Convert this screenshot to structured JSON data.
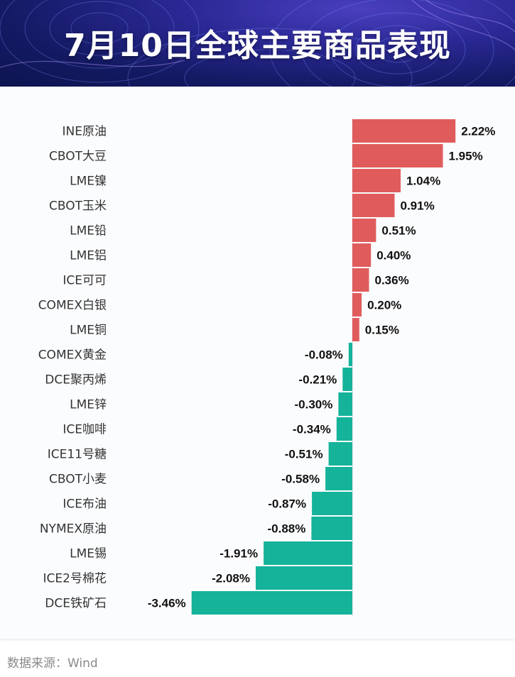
{
  "header": {
    "title": "7月10日全球主要商品表现"
  },
  "source": {
    "label": "数据来源：Wind"
  },
  "colors": {
    "positive": "#e05c5c",
    "negative": "#14b39a",
    "header_bg": "#1a1f73"
  },
  "chart_data": {
    "type": "bar",
    "orientation": "horizontal",
    "title": "7月10日全球主要商品表现",
    "unit": "%",
    "categories": [
      "INE原油",
      "CBOT大豆",
      "LME镍",
      "CBOT玉米",
      "LME铅",
      "LME铝",
      "ICE可可",
      "COMEX白银",
      "LME铜",
      "COMEX黄金",
      "DCE聚丙烯",
      "LME锌",
      "ICE咖啡",
      "ICE11号糖",
      "CBOT小麦",
      "ICE布油",
      "NYMEX原油",
      "LME锡",
      "ICE2号棉花",
      "DCE铁矿石"
    ],
    "values": [
      2.22,
      1.95,
      1.04,
      0.91,
      0.51,
      0.4,
      0.36,
      0.2,
      0.15,
      -0.08,
      -0.21,
      -0.3,
      -0.34,
      -0.51,
      -0.58,
      -0.87,
      -0.88,
      -1.91,
      -2.08,
      -3.46
    ],
    "labels": [
      "2.22%",
      "1.95%",
      "1.04%",
      "0.91%",
      "0.51%",
      "0.40%",
      "0.36%",
      "0.20%",
      "0.15%",
      "-0.08%",
      "-0.21%",
      "-0.30%",
      "-0.34%",
      "-0.51%",
      "-0.58%",
      "-0.87%",
      "-0.88%",
      "-1.91%",
      "-2.08%",
      "-3.46%"
    ],
    "xlim": [
      -3.46,
      2.22
    ],
    "grid": false,
    "legend": "none"
  }
}
